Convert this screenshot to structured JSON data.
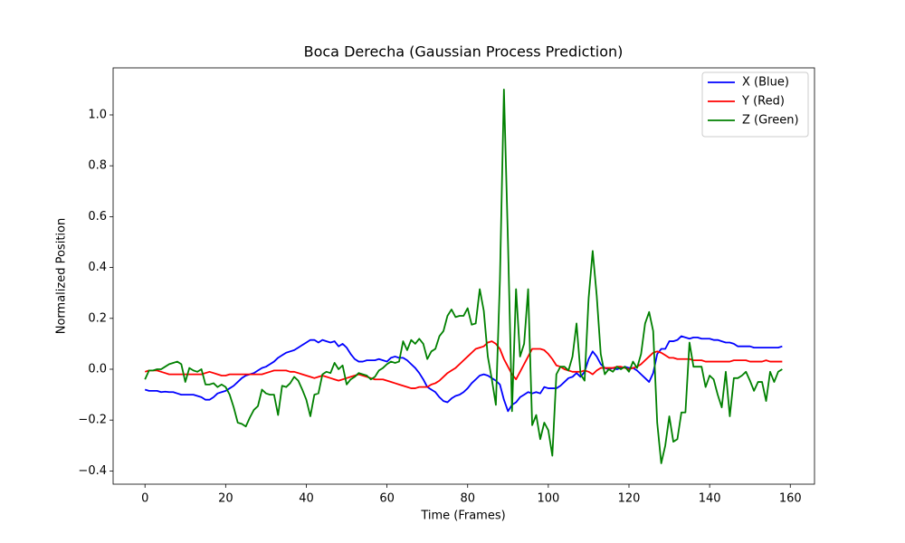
{
  "chart_data": {
    "type": "line",
    "title": "Boca Derecha (Gaussian Process Prediction)",
    "xlabel": "Time (Frames)",
    "ylabel": "Normalized Position",
    "x": [
      0,
      1,
      2,
      3,
      4,
      5,
      6,
      7,
      8,
      9,
      10,
      11,
      12,
      13,
      14,
      15,
      16,
      17,
      18,
      19,
      20,
      21,
      22,
      23,
      24,
      25,
      26,
      27,
      28,
      29,
      30,
      31,
      32,
      33,
      34,
      35,
      36,
      37,
      38,
      39,
      40,
      41,
      42,
      43,
      44,
      45,
      46,
      47,
      48,
      49,
      50,
      51,
      52,
      53,
      54,
      55,
      56,
      57,
      58,
      59,
      60,
      61,
      62,
      63,
      64,
      65,
      66,
      67,
      68,
      69,
      70,
      71,
      72,
      73,
      74,
      75,
      76,
      77,
      78,
      79,
      80,
      81,
      82,
      83,
      84,
      85,
      86,
      87,
      88,
      89,
      90,
      91,
      92,
      93,
      94,
      95,
      96,
      97,
      98,
      99,
      100,
      101,
      102,
      103,
      104,
      105,
      106,
      107,
      108,
      109,
      110,
      111,
      112,
      113,
      114,
      115,
      116,
      117,
      118,
      119,
      120,
      121,
      122,
      123,
      124,
      125,
      126,
      127,
      128,
      129,
      130,
      131,
      132,
      133,
      134,
      135,
      136,
      137,
      138,
      139,
      140,
      141,
      142,
      143,
      144,
      145,
      146,
      147,
      148,
      149,
      150,
      151,
      152,
      153,
      154,
      155,
      156,
      157,
      158
    ],
    "series": [
      {
        "name": "X (Blue)",
        "color": "#0000ff",
        "values": [
          -0.08,
          -0.085,
          -0.085,
          -0.085,
          -0.09,
          -0.088,
          -0.09,
          -0.09,
          -0.095,
          -0.1,
          -0.1,
          -0.1,
          -0.1,
          -0.105,
          -0.11,
          -0.12,
          -0.12,
          -0.11,
          -0.095,
          -0.09,
          -0.085,
          -0.075,
          -0.065,
          -0.05,
          -0.035,
          -0.025,
          -0.02,
          -0.015,
          -0.005,
          0.005,
          0.01,
          0.02,
          0.03,
          0.045,
          0.055,
          0.065,
          0.07,
          0.075,
          0.085,
          0.095,
          0.105,
          0.115,
          0.115,
          0.105,
          0.115,
          0.11,
          0.105,
          0.11,
          0.09,
          0.1,
          0.085,
          0.06,
          0.04,
          0.03,
          0.03,
          0.035,
          0.035,
          0.035,
          0.04,
          0.035,
          0.03,
          0.045,
          0.05,
          0.045,
          0.045,
          0.035,
          0.02,
          0.005,
          -0.015,
          -0.04,
          -0.07,
          -0.08,
          -0.09,
          -0.11,
          -0.125,
          -0.13,
          -0.115,
          -0.105,
          -0.1,
          -0.09,
          -0.075,
          -0.055,
          -0.04,
          -0.025,
          -0.02,
          -0.025,
          -0.035,
          -0.045,
          -0.06,
          -0.12,
          -0.165,
          -0.14,
          -0.13,
          -0.11,
          -0.1,
          -0.09,
          -0.095,
          -0.09,
          -0.095,
          -0.07,
          -0.075,
          -0.075,
          -0.075,
          -0.065,
          -0.05,
          -0.035,
          -0.03,
          -0.015,
          -0.03,
          -0.01,
          0.04,
          0.07,
          0.05,
          0.02,
          0.005,
          0.0,
          0.005,
          0.0,
          0.005,
          0.01,
          0.005,
          0.005,
          -0.005,
          -0.02,
          -0.035,
          -0.05,
          -0.015,
          0.06,
          0.08,
          0.08,
          0.11,
          0.11,
          0.115,
          0.13,
          0.125,
          0.12,
          0.125,
          0.125,
          0.12,
          0.12,
          0.12,
          0.115,
          0.115,
          0.11,
          0.105,
          0.105,
          0.1,
          0.09,
          0.09,
          0.09,
          0.09,
          0.085,
          0.085,
          0.085,
          0.085,
          0.085,
          0.085,
          0.085,
          0.09
        ]
      },
      {
        "name": "Y (Red)",
        "color": "#ff0000",
        "values": [
          -0.01,
          -0.005,
          -0.005,
          -0.005,
          -0.01,
          -0.015,
          -0.02,
          -0.02,
          -0.02,
          -0.02,
          -0.02,
          -0.02,
          -0.02,
          -0.02,
          -0.02,
          -0.015,
          -0.01,
          -0.015,
          -0.02,
          -0.025,
          -0.025,
          -0.02,
          -0.02,
          -0.02,
          -0.02,
          -0.02,
          -0.02,
          -0.02,
          -0.02,
          -0.02,
          -0.015,
          -0.01,
          -0.005,
          -0.005,
          -0.005,
          -0.005,
          -0.01,
          -0.01,
          -0.015,
          -0.02,
          -0.025,
          -0.03,
          -0.035,
          -0.03,
          -0.025,
          -0.03,
          -0.035,
          -0.04,
          -0.045,
          -0.04,
          -0.035,
          -0.03,
          -0.025,
          -0.02,
          -0.025,
          -0.03,
          -0.035,
          -0.04,
          -0.04,
          -0.04,
          -0.045,
          -0.05,
          -0.055,
          -0.06,
          -0.065,
          -0.07,
          -0.075,
          -0.075,
          -0.07,
          -0.07,
          -0.07,
          -0.06,
          -0.055,
          -0.045,
          -0.03,
          -0.015,
          -0.005,
          0.005,
          0.02,
          0.035,
          0.05,
          0.065,
          0.08,
          0.085,
          0.09,
          0.105,
          0.11,
          0.1,
          0.08,
          0.04,
          0.01,
          -0.02,
          -0.04,
          -0.01,
          0.02,
          0.05,
          0.08,
          0.08,
          0.08,
          0.075,
          0.06,
          0.04,
          0.015,
          0.01,
          0.0,
          -0.005,
          -0.01,
          -0.01,
          -0.01,
          -0.005,
          -0.01,
          -0.02,
          -0.005,
          0.005,
          0.005,
          0.005,
          0.005,
          0.01,
          0.01,
          0.005,
          0.0,
          0.005,
          0.01,
          0.02,
          0.035,
          0.05,
          0.065,
          0.07,
          0.065,
          0.055,
          0.045,
          0.045,
          0.04,
          0.04,
          0.04,
          0.04,
          0.035,
          0.035,
          0.035,
          0.03,
          0.03,
          0.03,
          0.03,
          0.03,
          0.03,
          0.03,
          0.035,
          0.035,
          0.035,
          0.035,
          0.03,
          0.03,
          0.03,
          0.03,
          0.035,
          0.03,
          0.03,
          0.03,
          0.03
        ]
      },
      {
        "name": "Z (Green)",
        "color": "#008000",
        "values": [
          -0.04,
          -0.005,
          -0.005,
          0.0,
          0.0,
          0.01,
          0.02,
          0.025,
          0.03,
          0.02,
          -0.05,
          0.005,
          -0.005,
          -0.01,
          0.0,
          -0.06,
          -0.06,
          -0.055,
          -0.07,
          -0.06,
          -0.07,
          -0.1,
          -0.15,
          -0.21,
          -0.215,
          -0.225,
          -0.19,
          -0.16,
          -0.145,
          -0.08,
          -0.095,
          -0.1,
          -0.1,
          -0.18,
          -0.065,
          -0.07,
          -0.055,
          -0.03,
          -0.045,
          -0.08,
          -0.12,
          -0.185,
          -0.1,
          -0.095,
          -0.02,
          -0.01,
          -0.015,
          0.025,
          0.0,
          0.015,
          -0.06,
          -0.04,
          -0.03,
          -0.015,
          -0.02,
          -0.025,
          -0.04,
          -0.03,
          -0.005,
          0.005,
          0.02,
          0.03,
          0.025,
          0.03,
          0.11,
          0.075,
          0.115,
          0.1,
          0.12,
          0.1,
          0.04,
          0.07,
          0.08,
          0.13,
          0.15,
          0.21,
          0.235,
          0.205,
          0.21,
          0.21,
          0.24,
          0.175,
          0.18,
          0.315,
          0.23,
          0.05,
          -0.04,
          -0.14,
          0.35,
          1.1,
          0.5,
          -0.165,
          0.315,
          0.05,
          0.1,
          0.315,
          -0.22,
          -0.18,
          -0.275,
          -0.21,
          -0.24,
          -0.34,
          -0.02,
          0.01,
          0.01,
          -0.005,
          0.05,
          0.18,
          -0.02,
          -0.045,
          0.28,
          0.465,
          0.29,
          0.06,
          -0.02,
          0.0,
          -0.01,
          0.01,
          0.0,
          0.01,
          -0.01,
          0.03,
          0.005,
          0.06,
          0.18,
          0.225,
          0.15,
          -0.21,
          -0.37,
          -0.3,
          -0.185,
          -0.285,
          -0.275,
          -0.17,
          -0.17,
          0.105,
          0.01,
          0.01,
          0.01,
          -0.07,
          -0.025,
          -0.04,
          -0.1,
          -0.15,
          -0.01,
          -0.185,
          -0.035,
          -0.035,
          -0.025,
          -0.01,
          -0.045,
          -0.085,
          -0.05,
          -0.05,
          -0.125,
          -0.01,
          -0.05,
          -0.01,
          0.0
        ]
      }
    ],
    "xlim": [
      -7.9,
      166
    ],
    "ylim": [
      -0.452,
      1.185
    ],
    "xticks": [
      0,
      20,
      40,
      60,
      80,
      100,
      120,
      140,
      160
    ],
    "yticks": [
      {
        "value": -0.4,
        "label": "−0.4"
      },
      {
        "value": -0.2,
        "label": "−0.2"
      },
      {
        "value": 0,
        "label": "0.0"
      },
      {
        "value": 0.2,
        "label": "0.2"
      },
      {
        "value": 0.4,
        "label": "0.4"
      },
      {
        "value": 0.6,
        "label": "0.6"
      },
      {
        "value": 0.8,
        "label": "0.8"
      },
      {
        "value": 1.0,
        "label": "1.0"
      }
    ],
    "grid": false,
    "legend": "upper right"
  }
}
